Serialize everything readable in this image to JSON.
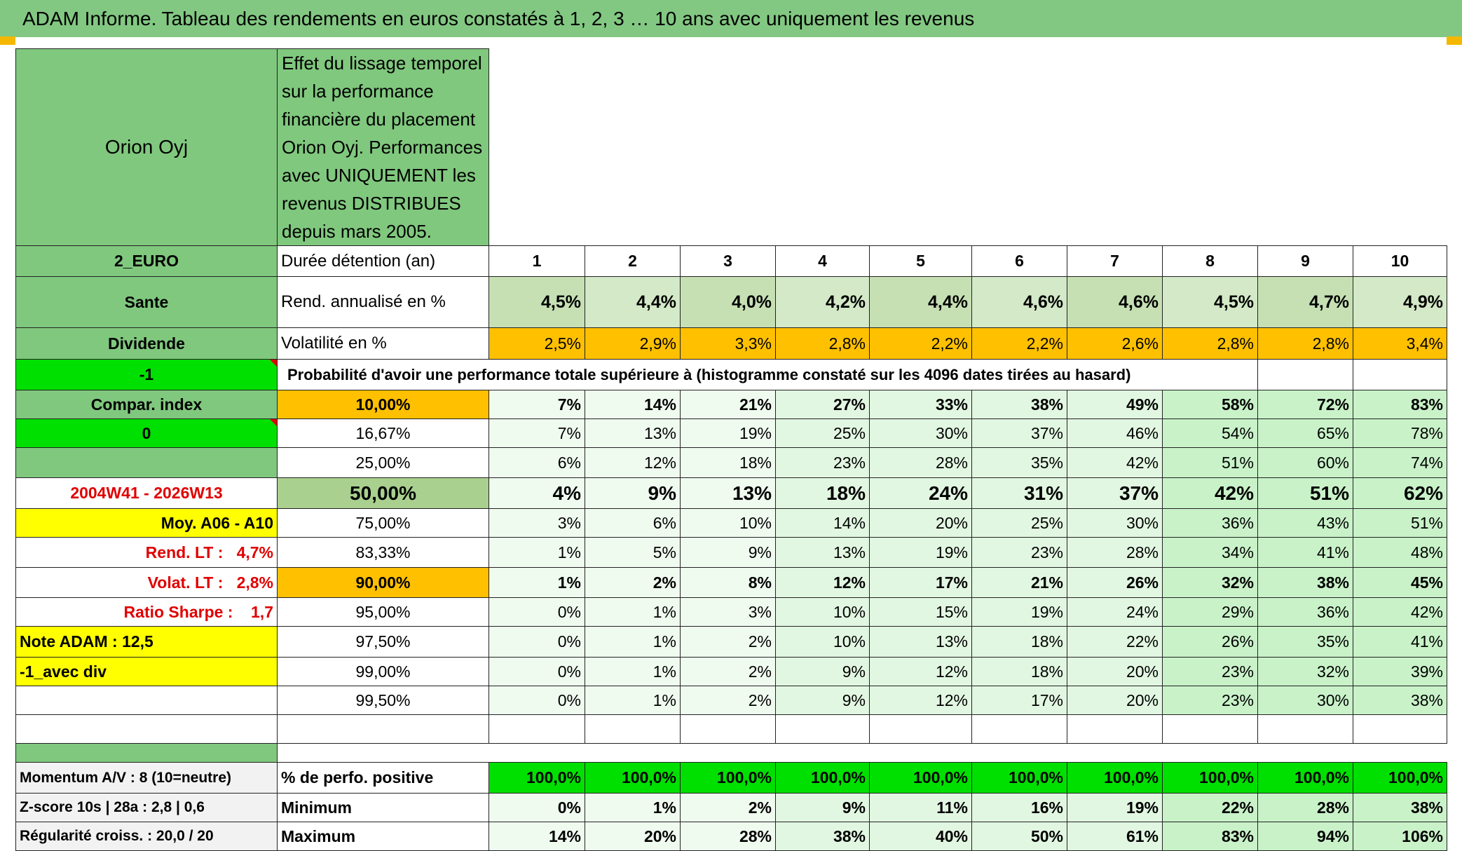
{
  "header": {
    "title": "ADAM Informe. Tableau des rendements en euros constatés à 1, 2, 3 … 10 ans avec uniquement les revenus"
  },
  "instrument": "Orion Oyj",
  "description": "Effet du lissage temporel sur la performance financière du placement Orion Oyj. Performances avec UNIQUEMENT les revenus DISTRIBUES depuis mars 2005.",
  "summary_rows": [
    {
      "side": "2_EURO",
      "label": "Durée détention (an)",
      "values": [
        "1",
        "2",
        "3",
        "4",
        "5",
        "6",
        "7",
        "8",
        "9",
        "10"
      ]
    },
    {
      "side": "Sante",
      "label": "Rend. annualisé en %",
      "values": [
        "4,5%",
        "4,4%",
        "4,0%",
        "4,2%",
        "4,4%",
        "4,6%",
        "4,6%",
        "4,5%",
        "4,7%",
        "4,9%"
      ]
    },
    {
      "side": "Dividende",
      "label": "Volatilité en %",
      "values": [
        "2,5%",
        "2,9%",
        "3,3%",
        "2,8%",
        "2,2%",
        "2,2%",
        "2,6%",
        "2,8%",
        "2,8%",
        "3,4%"
      ]
    }
  ],
  "probability": {
    "side": "-1",
    "caption": "Probabilité d'avoir une performance totale supérieure à (histogramme constaté sur les 4096 dates tirées au hasard)"
  },
  "threshold_rows": [
    {
      "side": "Compar. index",
      "threshold": "10,00%",
      "values": [
        "7%",
        "14%",
        "21%",
        "27%",
        "33%",
        "38%",
        "49%",
        "58%",
        "72%",
        "83%"
      ]
    },
    {
      "side": "0",
      "threshold": "16,67%",
      "values": [
        "7%",
        "13%",
        "19%",
        "25%",
        "30%",
        "37%",
        "46%",
        "54%",
        "65%",
        "78%"
      ]
    },
    {
      "threshold": "25,00%",
      "values": [
        "6%",
        "12%",
        "18%",
        "23%",
        "28%",
        "35%",
        "42%",
        "51%",
        "60%",
        "74%"
      ]
    },
    {
      "side": "2004W41 - 2026W13",
      "threshold": "50,00%",
      "values": [
        "4%",
        "9%",
        "13%",
        "18%",
        "24%",
        "31%",
        "37%",
        "42%",
        "51%",
        "62%"
      ]
    },
    {
      "side": "Moy. A06 - A10",
      "threshold": "75,00%",
      "values": [
        "3%",
        "6%",
        "10%",
        "14%",
        "20%",
        "25%",
        "30%",
        "36%",
        "43%",
        "51%"
      ]
    },
    {
      "side": "Rend. LT :   4,7%",
      "threshold": "83,33%",
      "values": [
        "1%",
        "5%",
        "9%",
        "13%",
        "19%",
        "23%",
        "28%",
        "34%",
        "41%",
        "48%"
      ]
    },
    {
      "side": "Volat. LT :   2,8%",
      "threshold": "90,00%",
      "values": [
        "1%",
        "2%",
        "8%",
        "12%",
        "17%",
        "21%",
        "26%",
        "32%",
        "38%",
        "45%"
      ]
    },
    {
      "side": "Ratio Sharpe :    1,7",
      "threshold": "95,00%",
      "values": [
        "0%",
        "1%",
        "3%",
        "10%",
        "15%",
        "19%",
        "24%",
        "29%",
        "36%",
        "42%"
      ]
    },
    {
      "side": "Note ADAM : 12,5",
      "threshold": "97,50%",
      "values": [
        "0%",
        "1%",
        "2%",
        "10%",
        "13%",
        "18%",
        "22%",
        "26%",
        "35%",
        "41%"
      ]
    },
    {
      "side": "-1_avec div",
      "threshold": "99,00%",
      "values": [
        "0%",
        "1%",
        "2%",
        "9%",
        "12%",
        "18%",
        "20%",
        "23%",
        "32%",
        "39%"
      ]
    },
    {
      "threshold": "99,50%",
      "values": [
        "0%",
        "1%",
        "2%",
        "9%",
        "12%",
        "17%",
        "20%",
        "23%",
        "30%",
        "38%"
      ]
    }
  ],
  "footer_rows": [
    {
      "side": "Momentum A/V : 8 (10=neutre)",
      "label": "% de perfo. positive",
      "values": [
        "100,0%",
        "100,0%",
        "100,0%",
        "100,0%",
        "100,0%",
        "100,0%",
        "100,0%",
        "100,0%",
        "100,0%",
        "100,0%"
      ]
    },
    {
      "side": "Z-score 10s | 28a : 2,8 | 0,6",
      "label": "Minimum",
      "values": [
        "0%",
        "1%",
        "2%",
        "9%",
        "11%",
        "16%",
        "19%",
        "22%",
        "28%",
        "38%"
      ]
    },
    {
      "side": "Régularité croiss. : 20,0 / 20",
      "label": "Maximum",
      "values": [
        "14%",
        "20%",
        "28%",
        "38%",
        "40%",
        "50%",
        "61%",
        "83%",
        "94%",
        "106%"
      ]
    }
  ]
}
